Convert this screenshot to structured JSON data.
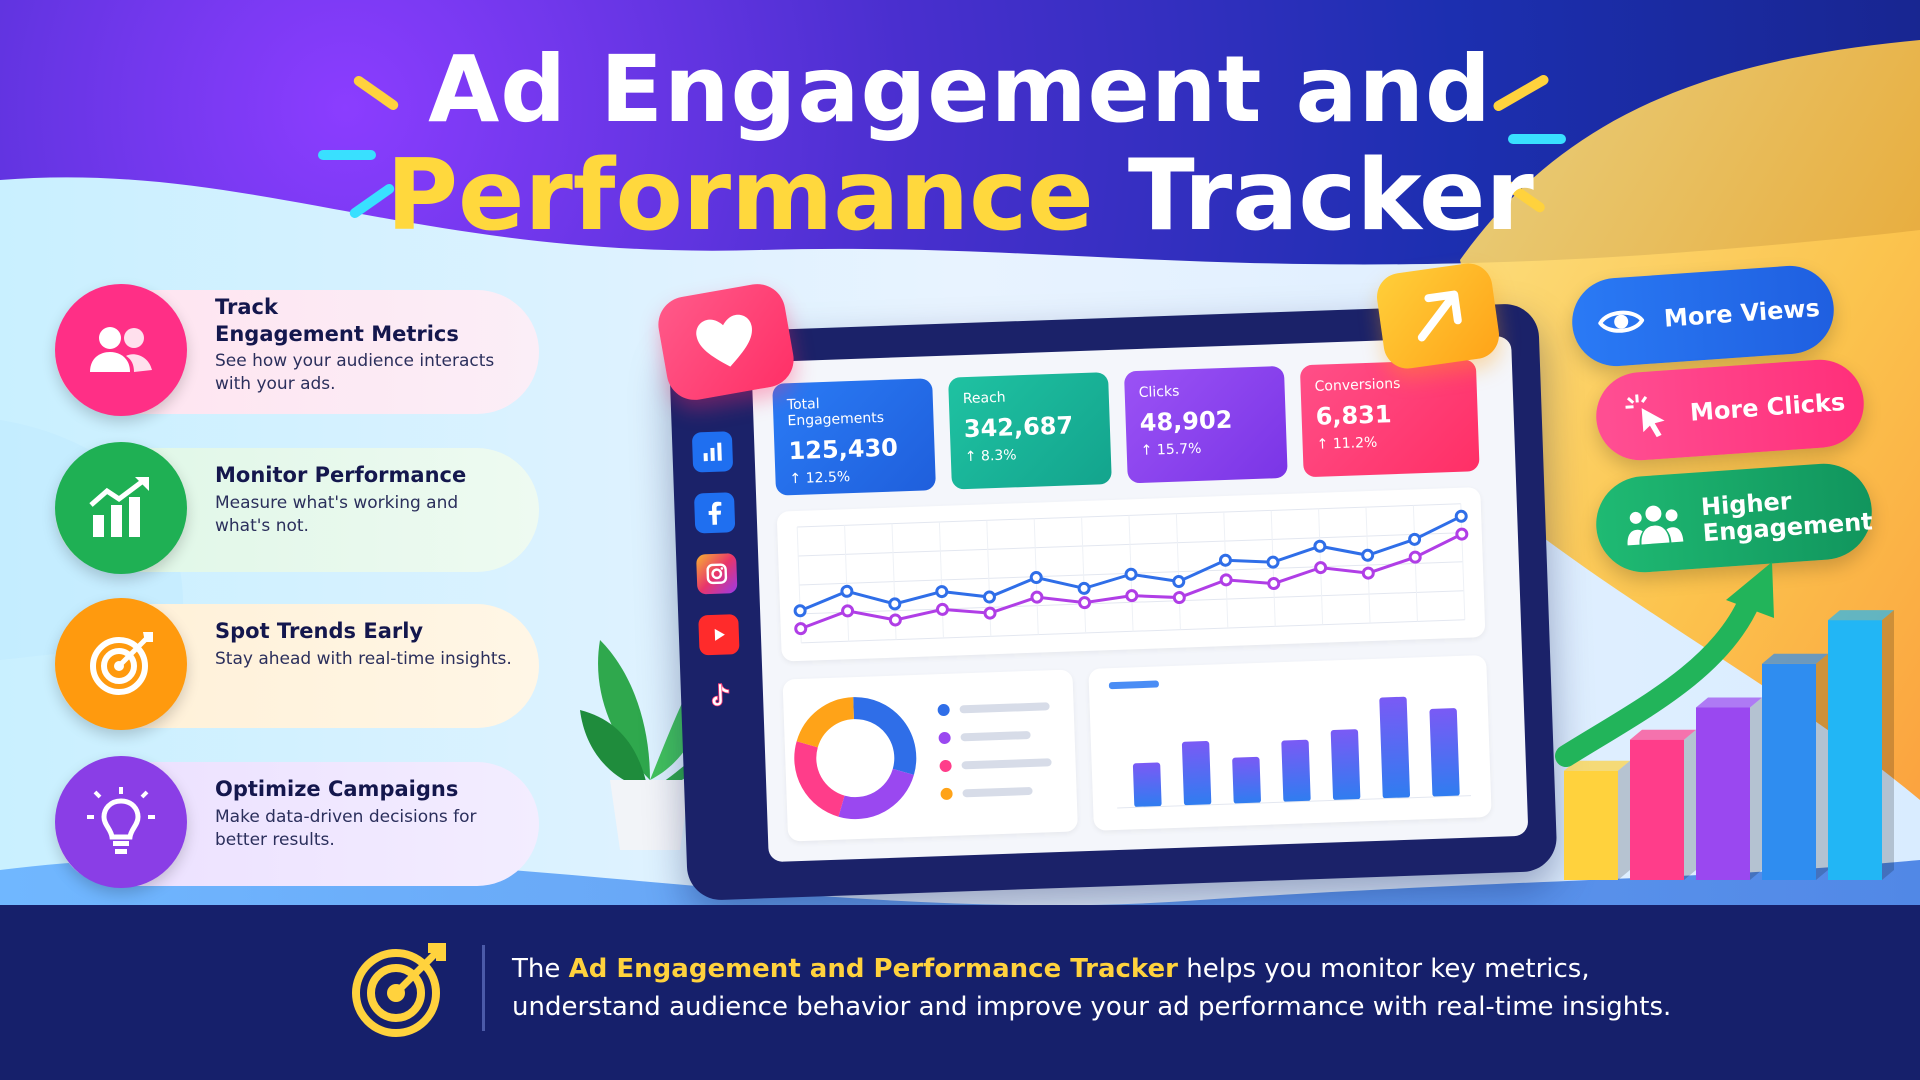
{
  "title": {
    "line1": "Ad Engagement and",
    "line2_highlight": "Performance",
    "line2_rest": "Tracker"
  },
  "features": [
    {
      "title": "Track\nEngagement Metrics",
      "desc": "See how your audience interacts with your ads.",
      "color": "#ff2f86",
      "icon": "users-icon"
    },
    {
      "title": "Monitor Performance",
      "desc": "Measure what's working and what's not.",
      "color": "#1fb054",
      "icon": "growth-chart-icon"
    },
    {
      "title": "Spot Trends Early",
      "desc": "Stay ahead with real-time insights.",
      "color": "#ff9a0e",
      "icon": "target-icon"
    },
    {
      "title": "Optimize Campaigns",
      "desc": "Make data-driven decisions for better results.",
      "color": "#8a3ee6",
      "icon": "lightbulb-icon"
    }
  ],
  "dashboard": {
    "kpis": [
      {
        "label": "Total Engagements",
        "value": "125,430",
        "change": "↑ 12.5%",
        "color": "#1f6ff0"
      },
      {
        "label": "Reach",
        "value": "342,687",
        "change": "↑ 8.3%",
        "color": "#16b39a"
      },
      {
        "label": "Clicks",
        "value": "48,902",
        "change": "↑ 15.7%",
        "color": "#8a44f0"
      },
      {
        "label": "Conversions",
        "value": "6,831",
        "change": "↑ 11.2%",
        "color": "#ff3d79"
      }
    ],
    "social_icons": [
      "bar-chart-icon",
      "facebook-icon",
      "instagram-icon",
      "youtube-icon",
      "tiktok-icon"
    ]
  },
  "chart_data": [
    {
      "type": "line",
      "title": "",
      "x": [
        1,
        2,
        3,
        4,
        5,
        6,
        7,
        8,
        9,
        10,
        11,
        12,
        13,
        14,
        15
      ],
      "series": [
        {
          "values": [
            38,
            48,
            40,
            46,
            42,
            52,
            45,
            52,
            47,
            58,
            56,
            64,
            58,
            66,
            78
          ],
          "color": "#2f6ee8"
        },
        {
          "values": [
            28,
            37,
            31,
            36,
            33,
            41,
            37,
            40,
            38,
            47,
            44,
            52,
            48,
            56,
            68
          ],
          "color": "#b03ee6"
        }
      ],
      "ylim": [
        20,
        85
      ],
      "grid": true
    },
    {
      "type": "pie",
      "title": "",
      "values": [
        30,
        25,
        25,
        20
      ],
      "colors": [
        "#2f6ee8",
        "#9a48f0",
        "#ff3d8a",
        "#ffa318"
      ]
    },
    {
      "type": "bar",
      "title": "",
      "categories": [
        "1",
        "2",
        "3",
        "4",
        "5",
        "6",
        "7"
      ],
      "values": [
        40,
        58,
        42,
        56,
        64,
        92,
        80
      ]
    },
    {
      "type": "bar",
      "title": "",
      "categories": [
        "1",
        "2",
        "3",
        "4",
        "5"
      ],
      "values": [
        95,
        122,
        150,
        188,
        226
      ],
      "colors": [
        "#ffd23d",
        "#ff3d8a",
        "#9a48f0",
        "#2f8df0",
        "#22b6f5"
      ]
    }
  ],
  "pills": [
    {
      "label": "More Views",
      "color": "#1f66e8",
      "icon": "eye-icon"
    },
    {
      "label": "More Clicks",
      "color": "#ff2f86",
      "icon": "cursor-click-icon"
    },
    {
      "label": "Higher\nEngagement",
      "color": "#14a668",
      "icon": "users-icon"
    }
  ],
  "footer": {
    "highlight": "Ad Engagement and Performance Tracker",
    "prefix": "The ",
    "rest": " helps you monitor key metrics, understand audience behavior and improve your ad performance with real-time insights."
  }
}
